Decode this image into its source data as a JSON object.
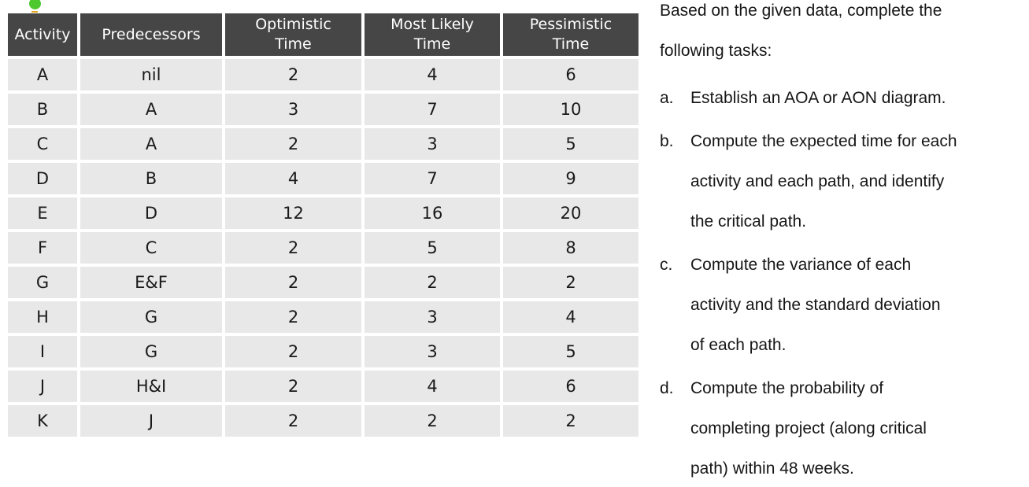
{
  "bullet": {
    "dot_color": "#4ec82f",
    "dash_color": "#dfa31f"
  },
  "table": {
    "header_bg": "#464646",
    "header_text_color": "#ffffff",
    "row_bg": "#e8e8e8",
    "columns": [
      "Activity",
      "Predecessors",
      "Optimistic\nTime",
      "Most Likely\nTime",
      "Pessimistic\nTime"
    ],
    "rows": [
      {
        "activity": "A",
        "predecessors": "nil",
        "optimistic": "2",
        "most_likely": "4",
        "pessimistic": "6"
      },
      {
        "activity": "B",
        "predecessors": "A",
        "optimistic": "3",
        "most_likely": "7",
        "pessimistic": "10"
      },
      {
        "activity": "C",
        "predecessors": "A",
        "optimistic": "2",
        "most_likely": "3",
        "pessimistic": "5"
      },
      {
        "activity": "D",
        "predecessors": "B",
        "optimistic": "4",
        "most_likely": "7",
        "pessimistic": "9"
      },
      {
        "activity": "E",
        "predecessors": "D",
        "optimistic": "12",
        "most_likely": "16",
        "pessimistic": "20"
      },
      {
        "activity": "F",
        "predecessors": "C",
        "optimistic": "2",
        "most_likely": "5",
        "pessimistic": "8"
      },
      {
        "activity": "G",
        "predecessors": "E&F",
        "optimistic": "2",
        "most_likely": "2",
        "pessimistic": "2"
      },
      {
        "activity": "H",
        "predecessors": "G",
        "optimistic": "2",
        "most_likely": "3",
        "pessimistic": "4"
      },
      {
        "activity": "I",
        "predecessors": "G",
        "optimistic": "2",
        "most_likely": "3",
        "pessimistic": "5"
      },
      {
        "activity": "J",
        "predecessors": "H&I",
        "optimistic": "2",
        "most_likely": "4",
        "pessimistic": "6"
      },
      {
        "activity": "K",
        "predecessors": "J",
        "optimistic": "2",
        "most_likely": "2",
        "pessimistic": "2"
      }
    ]
  },
  "panel": {
    "intro_lines": [
      "Based on the given data, complete the",
      "following tasks:"
    ],
    "tasks": [
      {
        "label": "a.",
        "lines": [
          "Establish an AOA or AON diagram."
        ]
      },
      {
        "label": "b.",
        "lines": [
          "Compute the expected time for each",
          "activity and each path, and identify",
          "the critical path."
        ]
      },
      {
        "label": "c.",
        "lines": [
          "Compute the variance of each",
          "activity and the standard deviation",
          "of each path."
        ]
      },
      {
        "label": "d.",
        "lines": [
          "Compute the probability of",
          "completing project (along critical",
          "path) within 48 weeks."
        ]
      }
    ]
  }
}
